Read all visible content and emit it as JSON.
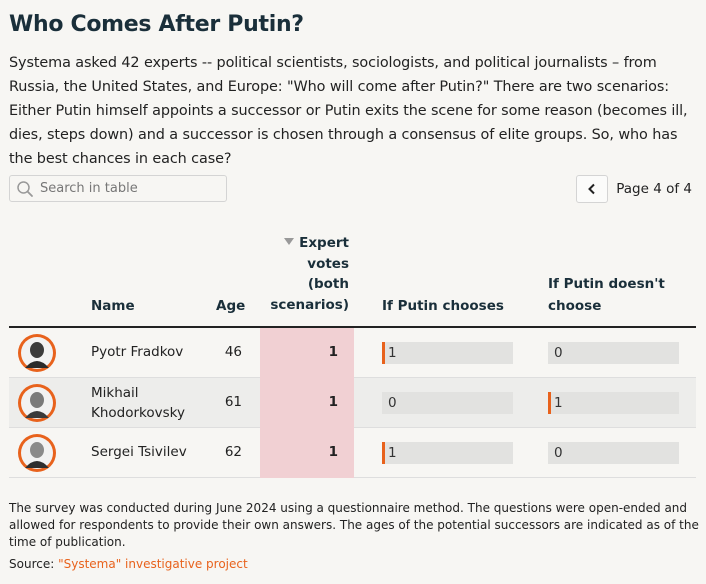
{
  "title": "Who Comes After Putin?",
  "intro": "Systema asked 42 experts -- political scientists, sociologists, and political journalists – from Russia, the United States, and Europe: \"Who will come after Putin?\" There are two scenarios: Either Putin himself appoints a successor or Putin exits the scene for some reason (becomes ill, dies, steps down) and a successor is chosen through a consensus of elite groups. So, who has the best chances in each case?",
  "search": {
    "placeholder": "Search in table",
    "icon": "search-icon"
  },
  "pager": {
    "label": "Page 4 of 4",
    "prev_icon": "chevron-left-icon"
  },
  "columns": {
    "name": "Name",
    "age": "Age",
    "votes": [
      "Expert",
      "votes",
      "(both",
      "scenarios)"
    ],
    "chooses": "If Putin chooses",
    "not_choose": [
      "If Putin doesn't",
      "choose"
    ]
  },
  "accent_color": "#e8621c",
  "votes_highlight_color": "#f1d0d3",
  "rows": [
    {
      "name": "Pyotr Fradkov",
      "age": "46",
      "votes": "1",
      "chooses": "1",
      "chooses_fraction": 1,
      "not_choose": "0",
      "not_choose_fraction": 0
    },
    {
      "name": "Mikhail Khodorkovsky",
      "age": "61",
      "votes": "1",
      "chooses": "0",
      "chooses_fraction": 0,
      "not_choose": "1",
      "not_choose_fraction": 1
    },
    {
      "name": "Sergei Tsivilev",
      "age": "62",
      "votes": "1",
      "chooses": "1",
      "chooses_fraction": 1,
      "not_choose": "0",
      "not_choose_fraction": 0
    }
  ],
  "footer": {
    "note": "The survey was conducted during June 2024 using a questionnaire method. The questions were open-ended and allowed for respondents to provide their own answers. The ages of the potential successors are indicated as of the time of publication.",
    "source_label": "Source: ",
    "source_link": "\"Systema\" investigative project"
  }
}
